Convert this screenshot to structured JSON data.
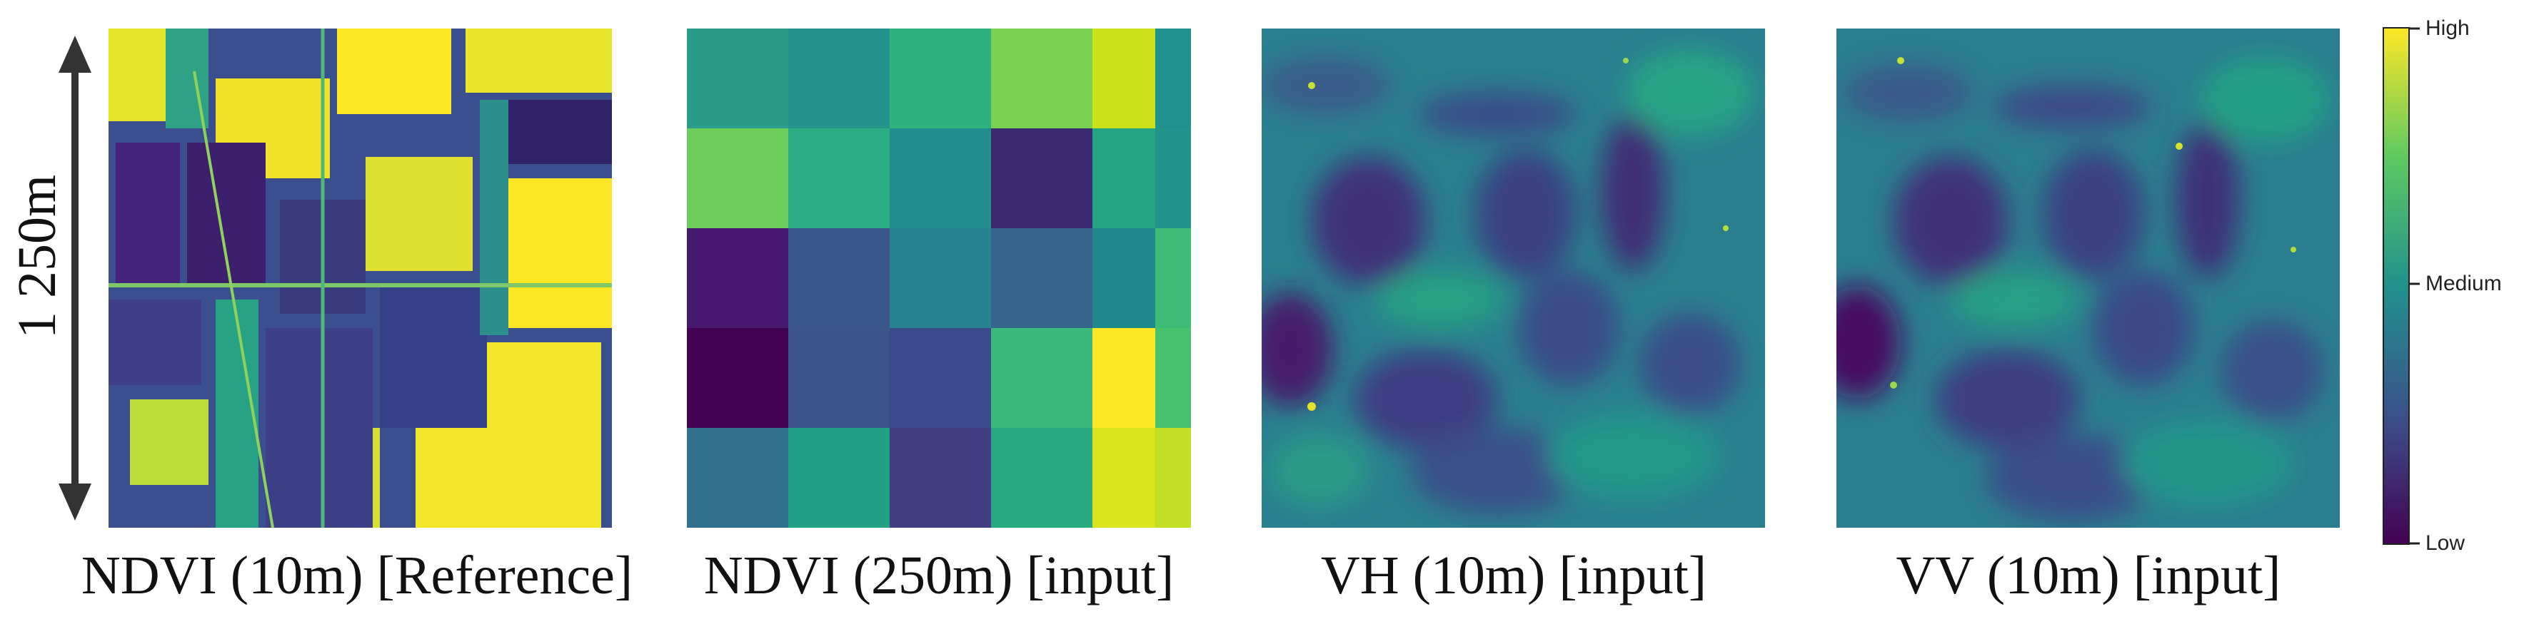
{
  "figure": {
    "scale_label": "1 250m",
    "panels": [
      {
        "id": "ndvi-10m",
        "caption": "NDVI (10m) [Reference]"
      },
      {
        "id": "ndvi-250m",
        "caption": "NDVI (250m) [input]"
      },
      {
        "id": "vh-10m",
        "caption": "VH (10m) [input]"
      },
      {
        "id": "vv-10m",
        "caption": "VV (10m) [input]"
      }
    ],
    "colorbar": {
      "high_label": "High",
      "medium_label": "Medium",
      "low_label": "Low",
      "colormap": "viridis",
      "colors": [
        "#440154",
        "#3b528b",
        "#21918c",
        "#5ec962",
        "#fde725"
      ]
    }
  }
}
